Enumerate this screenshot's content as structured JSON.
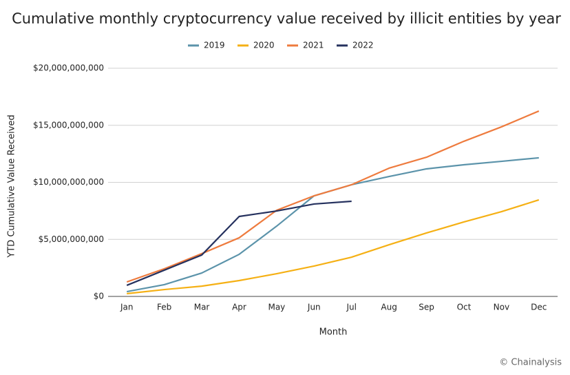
{
  "chart_data": {
    "type": "line",
    "title": "Cumulative monthly cryptocurrency value received by illicit entities by year",
    "x_label": "Month",
    "y_label": "YTD Cumulative Value Received",
    "source": "© Chainalysis",
    "categories": [
      "Jan",
      "Feb",
      "Mar",
      "Apr",
      "May",
      "Jun",
      "Jul",
      "Aug",
      "Sep",
      "Oct",
      "Nov",
      "Dec"
    ],
    "series": [
      {
        "name": "2019",
        "color": "#5b93aa",
        "values": [
          420000000,
          1030000000,
          2050000000,
          3690000000,
          6160000000,
          8820000000,
          9790000000,
          10510000000,
          11180000000,
          11540000000,
          11840000000,
          12150000000
        ]
      },
      {
        "name": "2020",
        "color": "#f5b014",
        "values": [
          240000000,
          600000000,
          900000000,
          1390000000,
          1990000000,
          2660000000,
          3440000000,
          4530000000,
          5560000000,
          6530000000,
          7430000000,
          8460000000
        ]
      },
      {
        "name": "2021",
        "color": "#ee7b3e",
        "values": [
          1270000000,
          2420000000,
          3750000000,
          5140000000,
          7550000000,
          8820000000,
          9790000000,
          11240000000,
          12200000000,
          13600000000,
          14860000000,
          16250000000
        ]
      },
      {
        "name": "2022",
        "color": "#25315e",
        "values": [
          970000000,
          2300000000,
          3630000000,
          7010000000,
          7490000000,
          8100000000,
          8340000000,
          null,
          null,
          null,
          null,
          null
        ]
      }
    ],
    "ylim": [
      0,
      20000000000
    ],
    "yticks": [
      {
        "value": 0,
        "label": "$0"
      },
      {
        "value": 5000000000,
        "label": "$5,000,000,000"
      },
      {
        "value": 10000000000,
        "label": "$10,000,000,000"
      },
      {
        "value": 15000000000,
        "label": "$15,000,000,000"
      },
      {
        "value": 20000000000,
        "label": "$20,000,000,000"
      }
    ],
    "grid": true,
    "legend": "top"
  }
}
